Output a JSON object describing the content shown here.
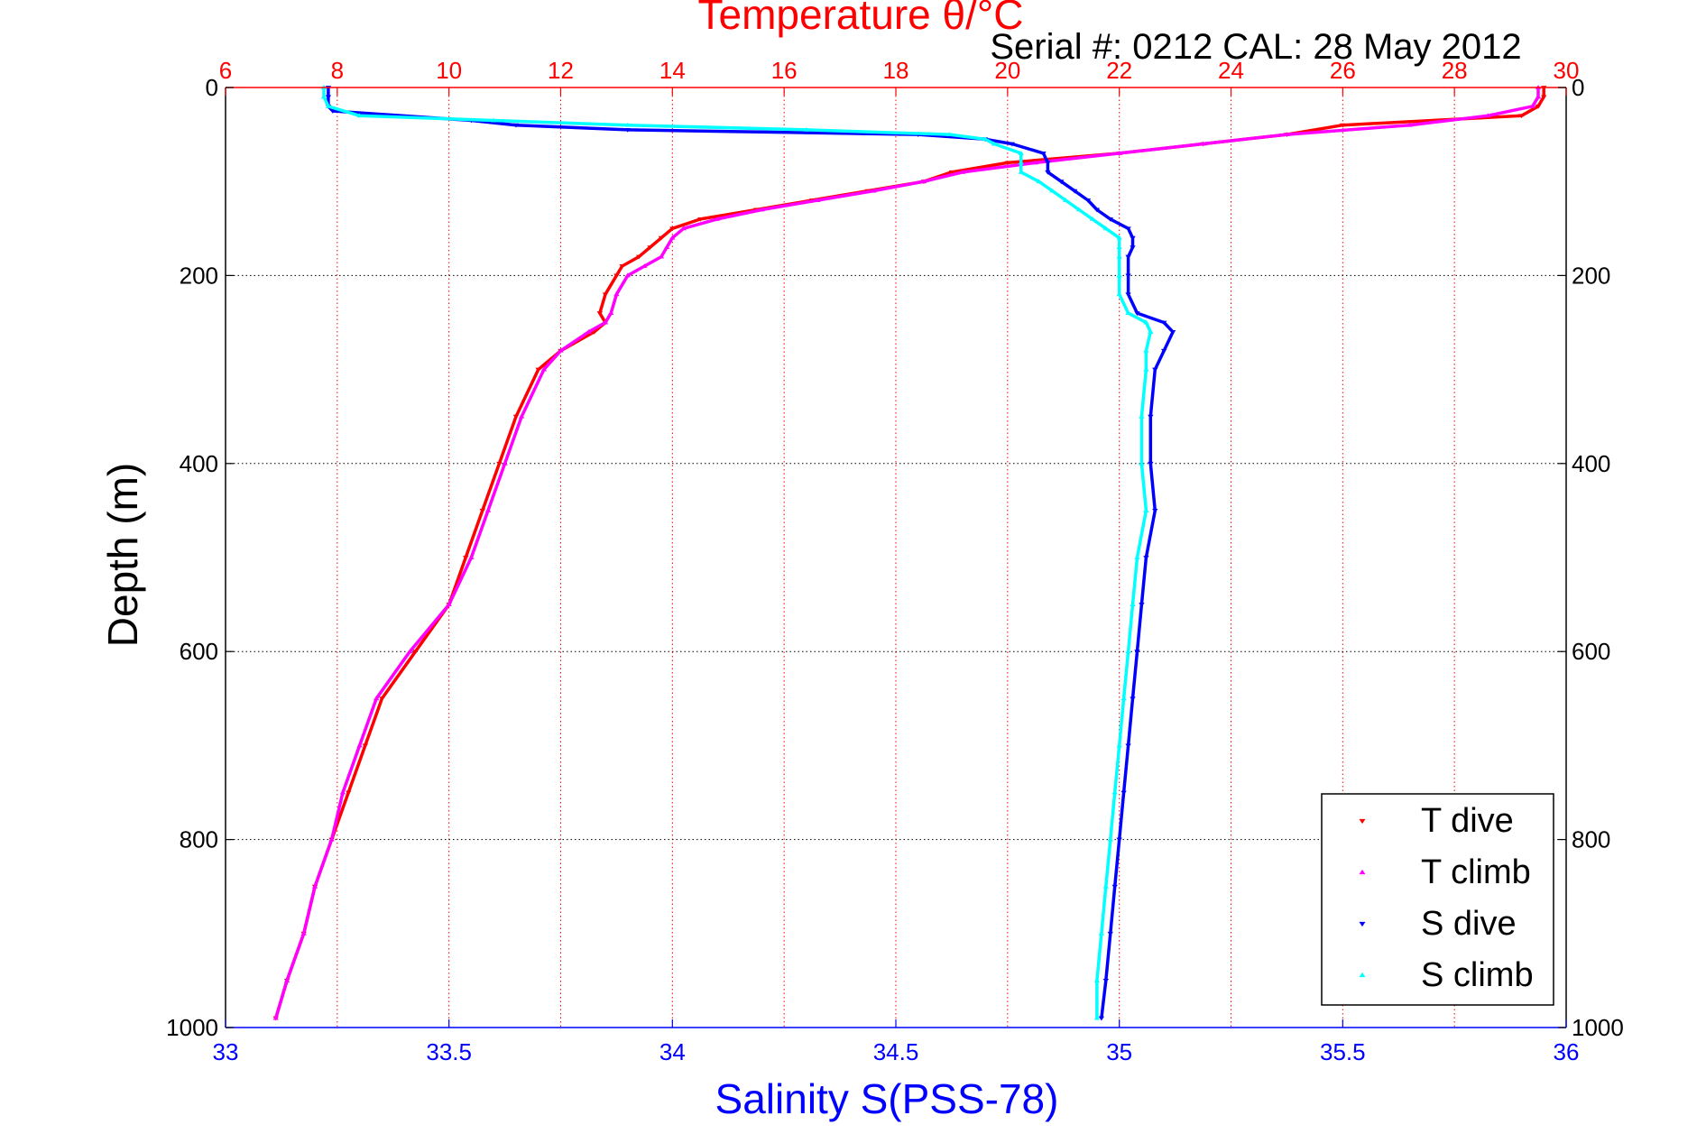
{
  "chart_data": {
    "type": "scatter",
    "top_axis_title": "Temperature θ/°C",
    "serial_text": "Serial #: 0212  CAL: 28 May 2012",
    "xlabel": "Salinity S(PSS-78)",
    "ylabel": "Depth (m)",
    "colors": {
      "temperature_axis": "#ff0000",
      "salinity_axis": "#0000ff",
      "t_dive": "#ff0000",
      "t_climb": "#ff00ff",
      "s_dive": "#0000ff",
      "s_climb": "#00ffff"
    },
    "x_bottom": {
      "label": "Salinity S(PSS-78)",
      "range": [
        33,
        36
      ],
      "ticks": [
        33,
        33.5,
        34,
        34.5,
        35,
        35.5,
        36
      ],
      "tick_labels": [
        "33",
        "33.5",
        "34",
        "34.5",
        "35",
        "35.5",
        "36"
      ]
    },
    "x_top": {
      "label": "Temperature θ/°C",
      "range": [
        6,
        30
      ],
      "ticks": [
        6,
        8,
        10,
        12,
        14,
        16,
        18,
        20,
        22,
        24,
        26,
        28,
        30
      ],
      "tick_labels": [
        "6",
        "8",
        "10",
        "12",
        "14",
        "16",
        "18",
        "20",
        "22",
        "24",
        "26",
        "28",
        "30"
      ]
    },
    "y": {
      "label": "Depth (m)",
      "range": [
        0,
        1000
      ],
      "reversed": true,
      "ticks": [
        0,
        200,
        400,
        600,
        800,
        1000
      ],
      "tick_labels": [
        "0",
        "200",
        "400",
        "600",
        "800",
        "1000"
      ]
    },
    "grid": true,
    "legend": {
      "position": "bottom-right",
      "entries": [
        "T dive",
        "T climb",
        "S dive",
        "S climb"
      ]
    },
    "series": [
      {
        "name": "T dive",
        "axis": "temperature",
        "marker": "triangle-down",
        "depth": [
          0,
          10,
          20,
          30,
          40,
          50,
          60,
          70,
          80,
          90,
          100,
          110,
          120,
          130,
          140,
          150,
          160,
          170,
          180,
          190,
          200,
          220,
          240,
          250,
          260,
          280,
          300,
          350,
          400,
          450,
          500,
          550,
          600,
          650,
          700,
          750,
          800,
          850,
          900,
          950,
          990
        ],
        "temperature": [
          29.6,
          29.6,
          29.5,
          29.2,
          26.0,
          25.0,
          23.5,
          22.0,
          20.0,
          19.0,
          18.5,
          17.5,
          16.5,
          15.5,
          14.5,
          14.0,
          13.8,
          13.6,
          13.4,
          13.1,
          13.0,
          12.8,
          12.7,
          12.8,
          12.6,
          12.0,
          11.6,
          11.2,
          10.9,
          10.6,
          10.3,
          10.0,
          9.4,
          8.8,
          8.5,
          8.2,
          7.9,
          7.6,
          7.4,
          7.1,
          6.9
        ]
      },
      {
        "name": "T climb",
        "axis": "temperature",
        "marker": "triangle-up",
        "depth": [
          0,
          10,
          20,
          30,
          40,
          50,
          60,
          70,
          80,
          90,
          100,
          110,
          120,
          130,
          140,
          150,
          160,
          170,
          180,
          190,
          200,
          220,
          240,
          250,
          260,
          280,
          300,
          350,
          400,
          450,
          500,
          550,
          600,
          650,
          700,
          750,
          800,
          850,
          900,
          950,
          990
        ],
        "temperature": [
          29.5,
          29.5,
          29.4,
          28.6,
          27.2,
          25.0,
          23.5,
          22.0,
          20.5,
          19.2,
          18.5,
          17.6,
          16.6,
          15.6,
          14.8,
          14.2,
          14.0,
          13.9,
          13.8,
          13.5,
          13.2,
          13.0,
          12.9,
          12.8,
          12.5,
          12.0,
          11.7,
          11.3,
          11.0,
          10.7,
          10.4,
          10.0,
          9.3,
          8.7,
          8.4,
          8.1,
          7.9,
          7.6,
          7.4,
          7.1,
          6.9
        ]
      },
      {
        "name": "S dive",
        "axis": "salinity",
        "marker": "triangle-down",
        "depth": [
          0,
          10,
          20,
          25,
          35,
          40,
          45,
          50,
          55,
          60,
          70,
          80,
          90,
          100,
          110,
          120,
          130,
          140,
          150,
          160,
          170,
          180,
          200,
          220,
          240,
          250,
          260,
          280,
          300,
          350,
          400,
          450,
          500,
          550,
          600,
          650,
          700,
          750,
          800,
          850,
          900,
          950,
          990
        ],
        "salinity": [
          33.23,
          33.23,
          33.23,
          33.24,
          33.55,
          33.65,
          33.9,
          34.55,
          34.7,
          34.76,
          34.83,
          34.84,
          34.84,
          34.87,
          34.9,
          34.93,
          34.95,
          34.98,
          35.02,
          35.03,
          35.03,
          35.02,
          35.02,
          35.02,
          35.04,
          35.1,
          35.12,
          35.1,
          35.08,
          35.07,
          35.07,
          35.08,
          35.06,
          35.05,
          35.04,
          35.03,
          35.02,
          35.01,
          35.0,
          34.99,
          34.98,
          34.97,
          34.96
        ]
      },
      {
        "name": "S climb",
        "axis": "salinity",
        "marker": "triangle-up",
        "depth": [
          0,
          10,
          20,
          30,
          35,
          40,
          45,
          50,
          55,
          60,
          70,
          80,
          90,
          100,
          110,
          120,
          130,
          140,
          150,
          160,
          170,
          180,
          200,
          220,
          240,
          250,
          260,
          280,
          300,
          350,
          400,
          450,
          500,
          550,
          600,
          650,
          700,
          750,
          800,
          850,
          900,
          950,
          990
        ],
        "salinity": [
          33.22,
          33.22,
          33.23,
          33.3,
          33.6,
          33.9,
          34.3,
          34.62,
          34.7,
          34.72,
          34.78,
          34.78,
          34.78,
          34.82,
          34.85,
          34.88,
          34.91,
          34.94,
          34.97,
          35.0,
          35.0,
          35.0,
          35.0,
          35.0,
          35.02,
          35.06,
          35.07,
          35.06,
          35.06,
          35.05,
          35.05,
          35.06,
          35.04,
          35.03,
          35.02,
          35.01,
          35.0,
          34.99,
          34.98,
          34.97,
          34.96,
          34.95,
          34.95
        ]
      }
    ]
  }
}
